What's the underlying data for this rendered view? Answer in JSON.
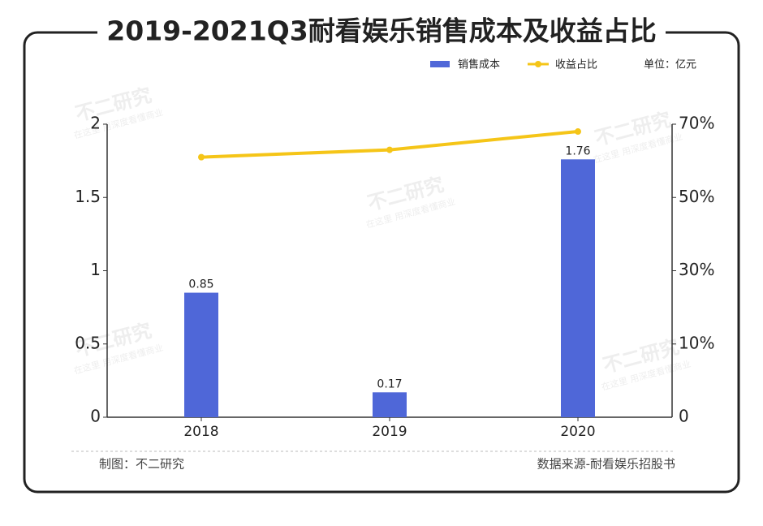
{
  "chart_data": {
    "type": "bar",
    "title": "2019-2021Q3耐看娱乐销售成本及收益占比",
    "categories": [
      "2018",
      "2019",
      "2020"
    ],
    "series": [
      {
        "name": "销售成本",
        "color": "#4f67d8",
        "values": [
          0.85,
          0.17,
          1.76
        ]
      },
      {
        "name": "收益占比",
        "color": "#f5c518",
        "type": "line",
        "axis": "y2",
        "values": [
          61,
          63,
          68
        ]
      }
    ],
    "ylim": [
      0,
      2
    ],
    "yticks": [
      0,
      0.5,
      1,
      1.5,
      2
    ],
    "y2lim": [
      -10,
      70
    ],
    "y2ticks": [
      {
        "value": 10,
        "label": "10%"
      },
      {
        "value": 30,
        "label": "30%"
      },
      {
        "value": 50,
        "label": "50%"
      },
      {
        "value": 70,
        "label": "70%"
      }
    ],
    "y2_origin_label": "0",
    "unit": "单位：亿元",
    "credit": "制图：不二研究",
    "source": "数据来源-耐看娱乐招股书",
    "watermark": "不二研究",
    "watermark_sub": "在这里 用深度看懂商业",
    "legend": "top-right"
  }
}
